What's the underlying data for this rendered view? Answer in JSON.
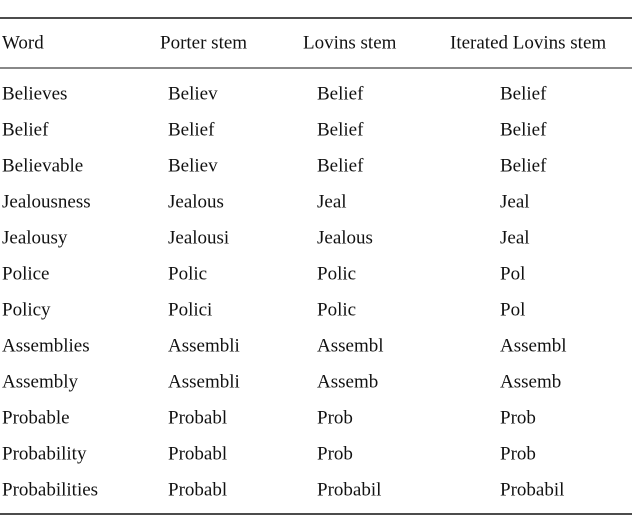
{
  "table": {
    "header": [
      "Word",
      "Porter stem",
      "Lovins stem",
      "Iterated Lovins stem"
    ],
    "rows": [
      [
        "Believes",
        "Believ",
        "Belief",
        "Belief"
      ],
      [
        "Belief",
        "Belief",
        "Belief",
        "Belief"
      ],
      [
        "Believable",
        "Believ",
        "Belief",
        "Belief"
      ],
      [
        "Jealousness",
        "Jealous",
        "Jeal",
        "Jeal"
      ],
      [
        "Jealousy",
        "Jealousi",
        "Jealous",
        "Jeal"
      ],
      [
        "Police",
        "Polic",
        "Polic",
        "Pol"
      ],
      [
        "Policy",
        "Polici",
        "Polic",
        "Pol"
      ],
      [
        "Assemblies",
        "Assembli",
        "Assembl",
        "Assembl"
      ],
      [
        "Assembly",
        "Assembli",
        "Assemb",
        "Assemb"
      ],
      [
        "Probable",
        "Probabl",
        "Prob",
        "Prob"
      ],
      [
        "Probability",
        "Probabl",
        "Prob",
        "Prob"
      ],
      [
        "Probabilities",
        "Probabl",
        "Probabil",
        "Probabil"
      ]
    ]
  }
}
